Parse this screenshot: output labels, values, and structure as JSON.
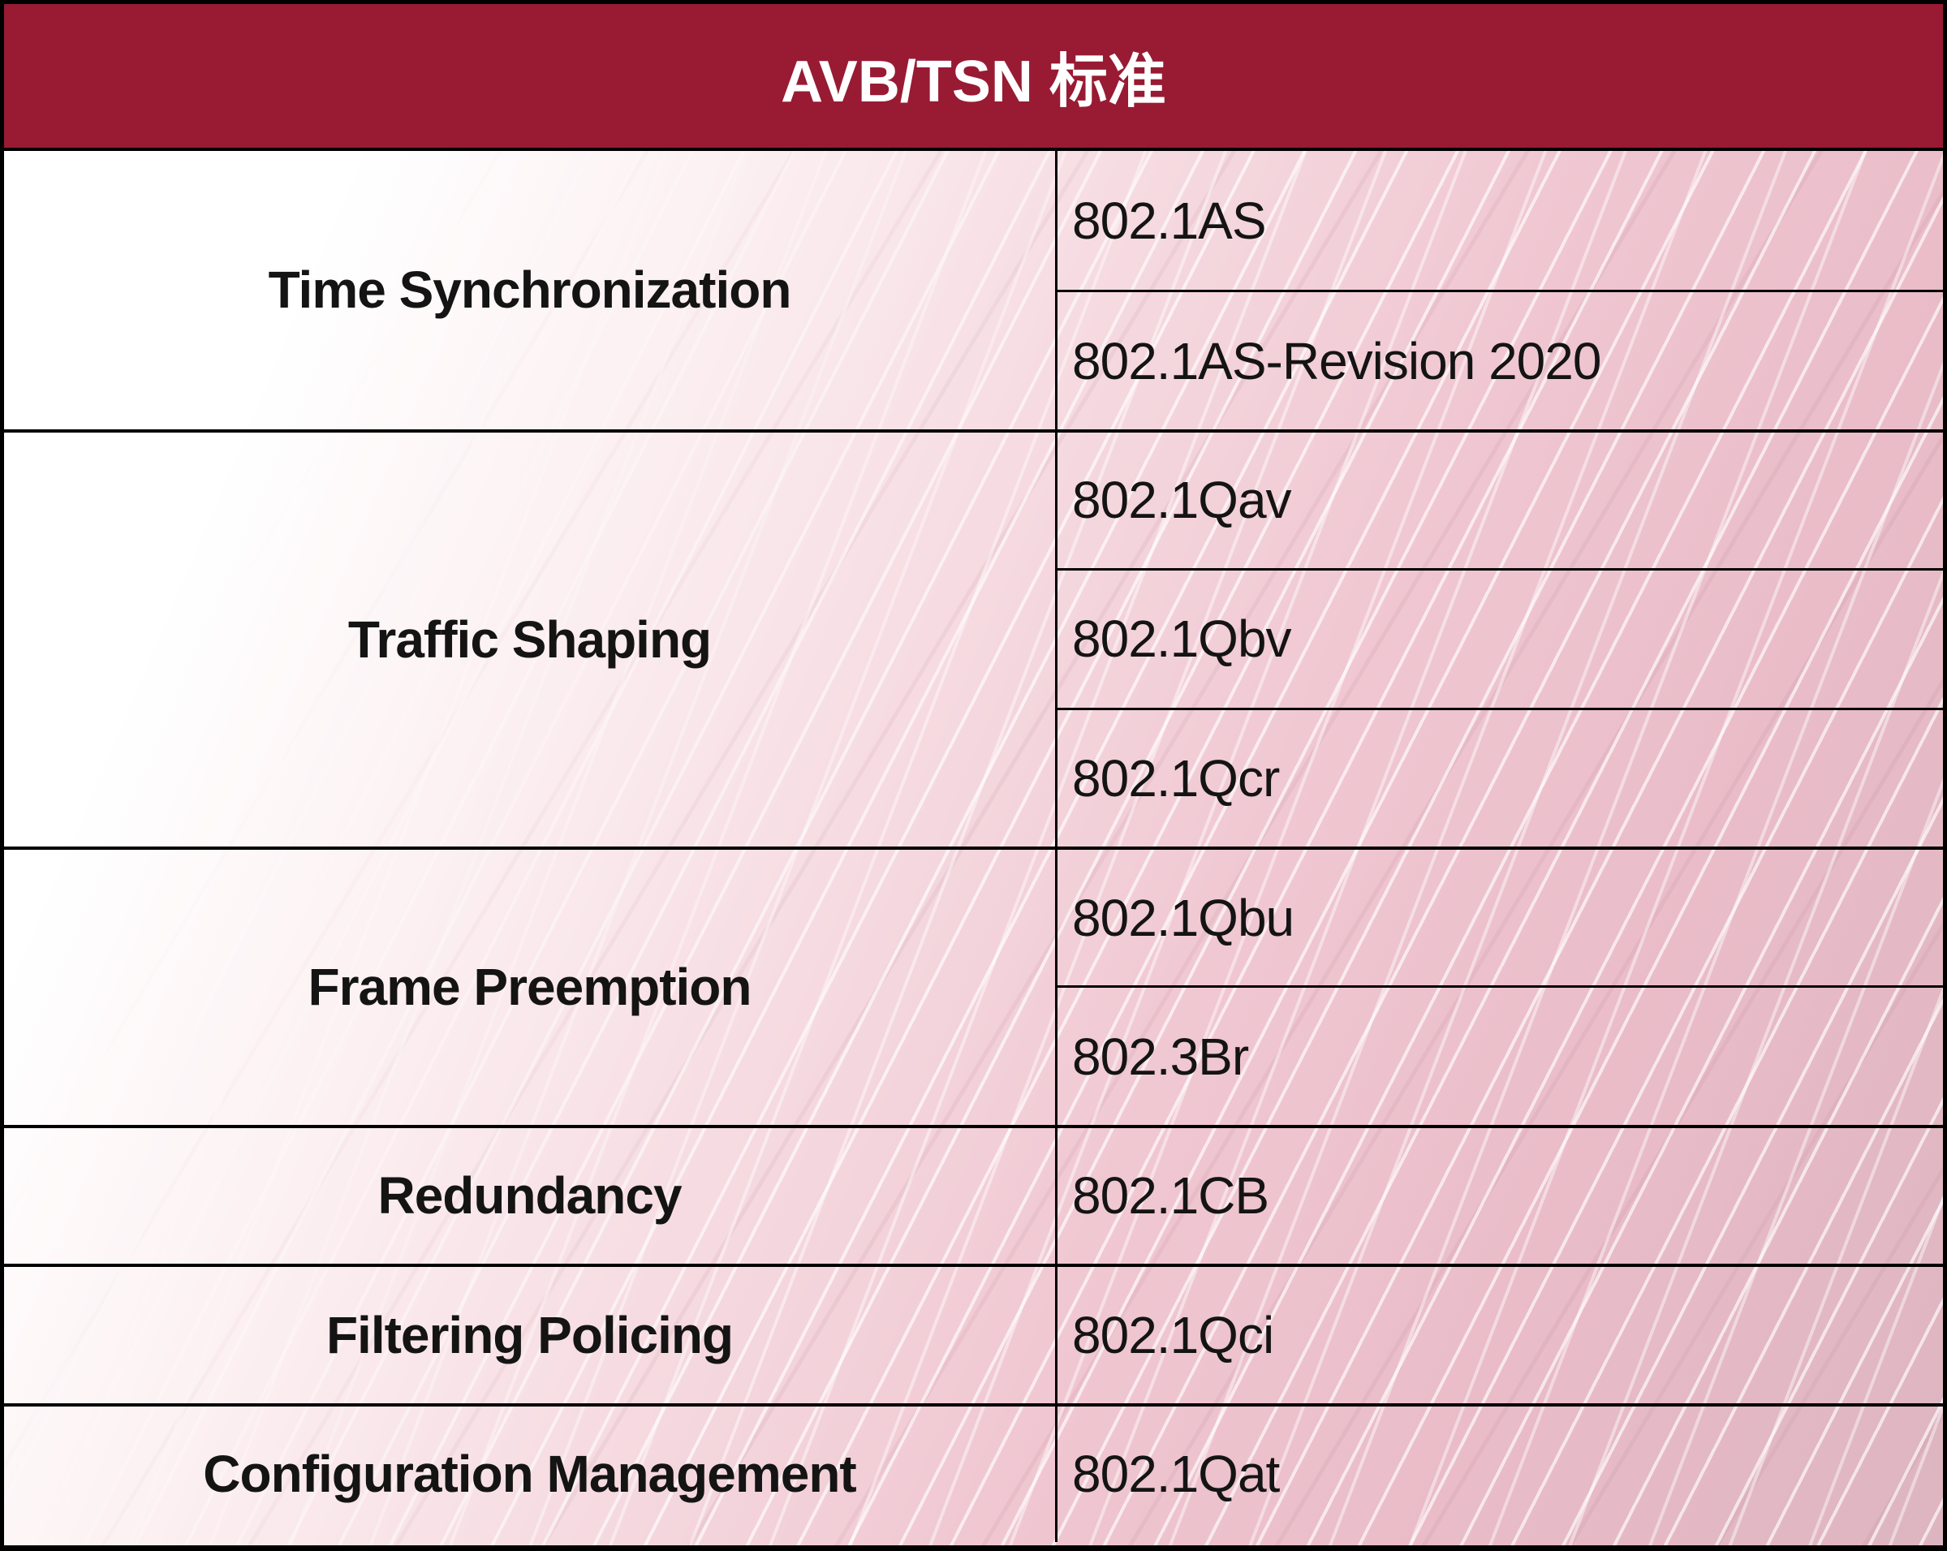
{
  "title": "AVB/TSN 标准",
  "colors": {
    "header_bg": "#981B33",
    "header_text": "#FFFFFF",
    "border": "#000000",
    "body_text": "#141414",
    "bg_pink": "#E9BCC8"
  },
  "table": {
    "groups": [
      {
        "category": "Time Synchronization",
        "standards": [
          "802.1AS",
          "802.1AS-Revision 2020"
        ]
      },
      {
        "category": "Traffic Shaping",
        "standards": [
          "802.1Qav",
          "802.1Qbv",
          "802.1Qcr"
        ]
      },
      {
        "category": "Frame Preemption",
        "standards": [
          "802.1Qbu",
          "802.3Br"
        ]
      },
      {
        "category": "Redundancy",
        "standards": [
          "802.1CB"
        ]
      },
      {
        "category": "Filtering Policing",
        "standards": [
          "802.1Qci"
        ]
      },
      {
        "category": "Configuration Management",
        "standards": [
          "802.1Qat"
        ]
      }
    ]
  }
}
